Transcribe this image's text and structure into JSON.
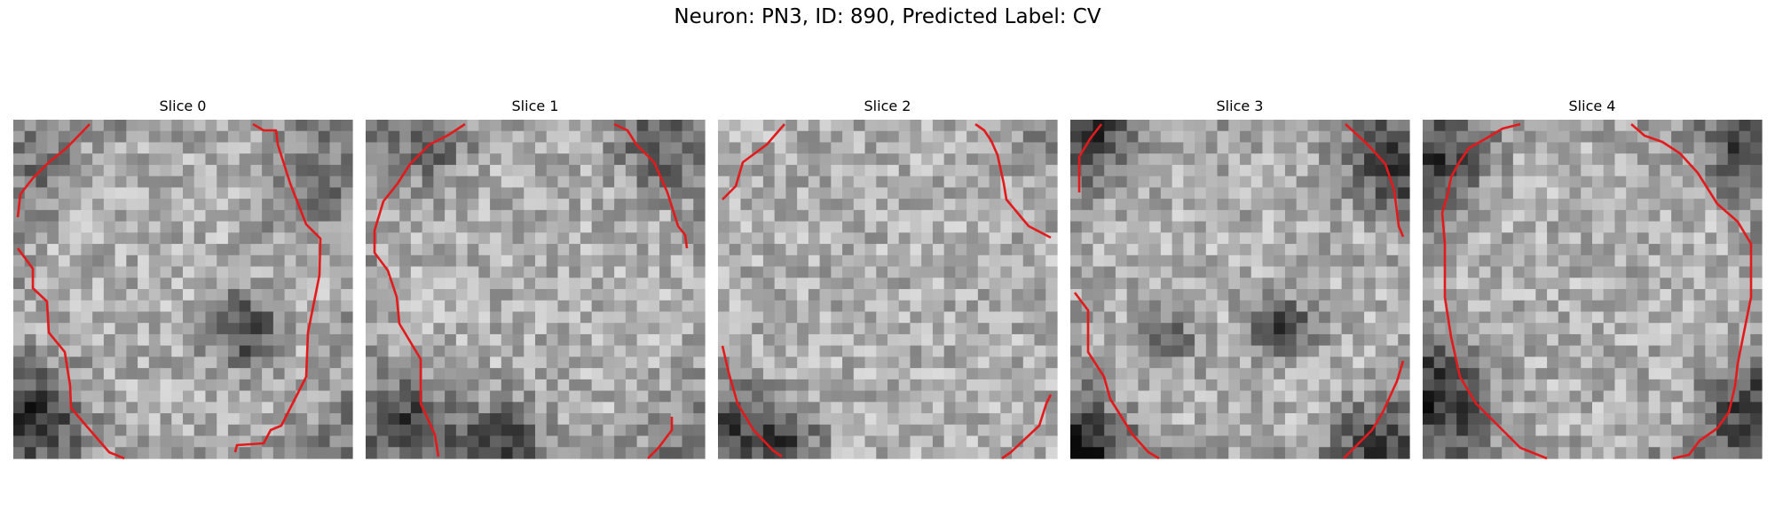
{
  "figure": {
    "title": "Neuron: PN3, ID: 890, Predicted Label: CV"
  },
  "slices": [
    {
      "title": "Slice 0"
    },
    {
      "title": "Slice 1"
    },
    {
      "title": "Slice 2"
    },
    {
      "title": "Slice 3"
    },
    {
      "title": "Slice 4"
    }
  ],
  "colors": {
    "contour": "#e31a1c",
    "background": "#ffffff"
  }
}
